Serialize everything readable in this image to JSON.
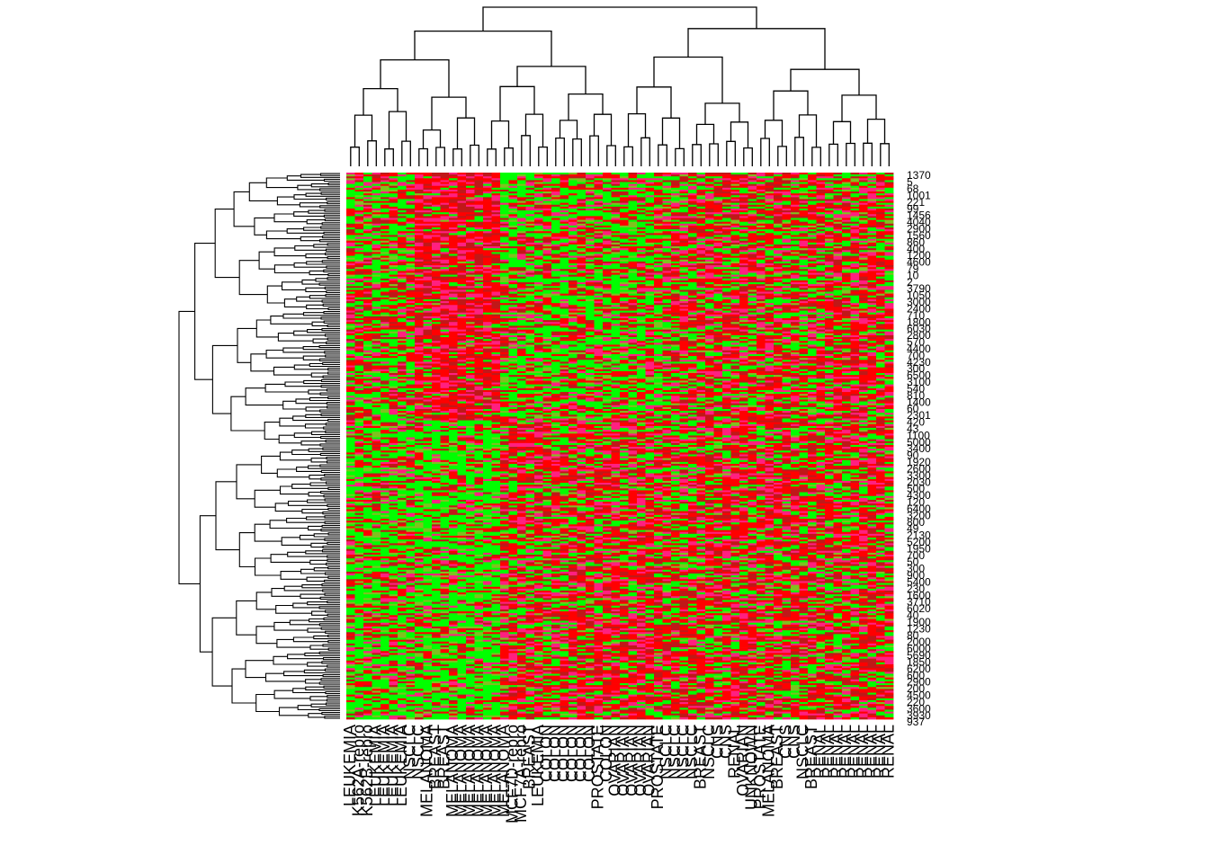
{
  "chart_data": {
    "type": "heatmap",
    "title": "",
    "xlabel": "",
    "ylabel": "",
    "color_scale": [
      "#00ff00",
      "#80c020",
      "#c01818",
      "#ff0000",
      "#ff2080"
    ],
    "row_count": 289,
    "column_labels": [
      "LEUKEMIA",
      "K562A-repro",
      "K562B-repro",
      "LEUKEMIA",
      "LEUKEMIA",
      "LEUKEMIA",
      "LEUKEMIA",
      "NSCLC",
      "NSCLC",
      "MELANOMA",
      "BREAST",
      "BREAST",
      "MELANOMA",
      "MELANOMA",
      "MELANOMA",
      "MELANOMA",
      "MELANOMA",
      "MELANOMA",
      "MELANOMA",
      "MCF7D-repro",
      "MCF7A-repro",
      "BREAST",
      "LEUKEMIA",
      "COLON",
      "COLON",
      "COLON",
      "COLON",
      "COLON",
      "COLON",
      "PROSTATE",
      "COLON",
      "OVARIAN",
      "OVARIAN",
      "OVARIAN",
      "OVARIAN",
      "OVARIAN",
      "PROSTATE",
      "NSCLC",
      "NSCLC",
      "NSCLC",
      "NSCLC",
      "BREAST",
      "NSCLC",
      "CNS",
      "CNS",
      "RENAL",
      "OVARIAN",
      "UNKNOWN",
      "PROSTATE",
      "MELANOMA",
      "BREAST",
      "CNS",
      "CNS",
      "NSCLC",
      "BREAST",
      "RENAL",
      "RENAL",
      "RENAL",
      "RENAL",
      "RENAL",
      "RENAL",
      "RENAL",
      "RENAL",
      "RENAL"
    ],
    "row_labels_shown": [
      "1370",
      "5",
      "68",
      "1001",
      "221",
      "99",
      "1456",
      "4040",
      "2900",
      "1560",
      "860",
      "400",
      "1200",
      "4600",
      "79",
      "10",
      "2",
      "3790",
      "1050",
      "3000",
      "2400",
      "710",
      "1800",
      "6030",
      "2800",
      "570",
      "4400",
      "700",
      "4230",
      "300",
      "6500",
      "3100",
      "540",
      "810",
      "1400",
      "60",
      "2301",
      "420",
      "43",
      "1100",
      "5000",
      "3400",
      "90",
      "1920",
      "2600",
      "3300",
      "2030",
      "500",
      "4300",
      "120",
      "6400",
      "3200",
      "800",
      "49",
      "2130",
      "5200",
      "1950",
      "700",
      "50",
      "300",
      "900",
      "5400",
      "230",
      "1600",
      "3710",
      "6020",
      "40",
      "1900",
      "1230",
      "80",
      "2000",
      "6000",
      "5690",
      "1850",
      "6200",
      "600",
      "2900",
      "200",
      "4500",
      "220",
      "3600",
      "3930",
      "937"
    ]
  }
}
